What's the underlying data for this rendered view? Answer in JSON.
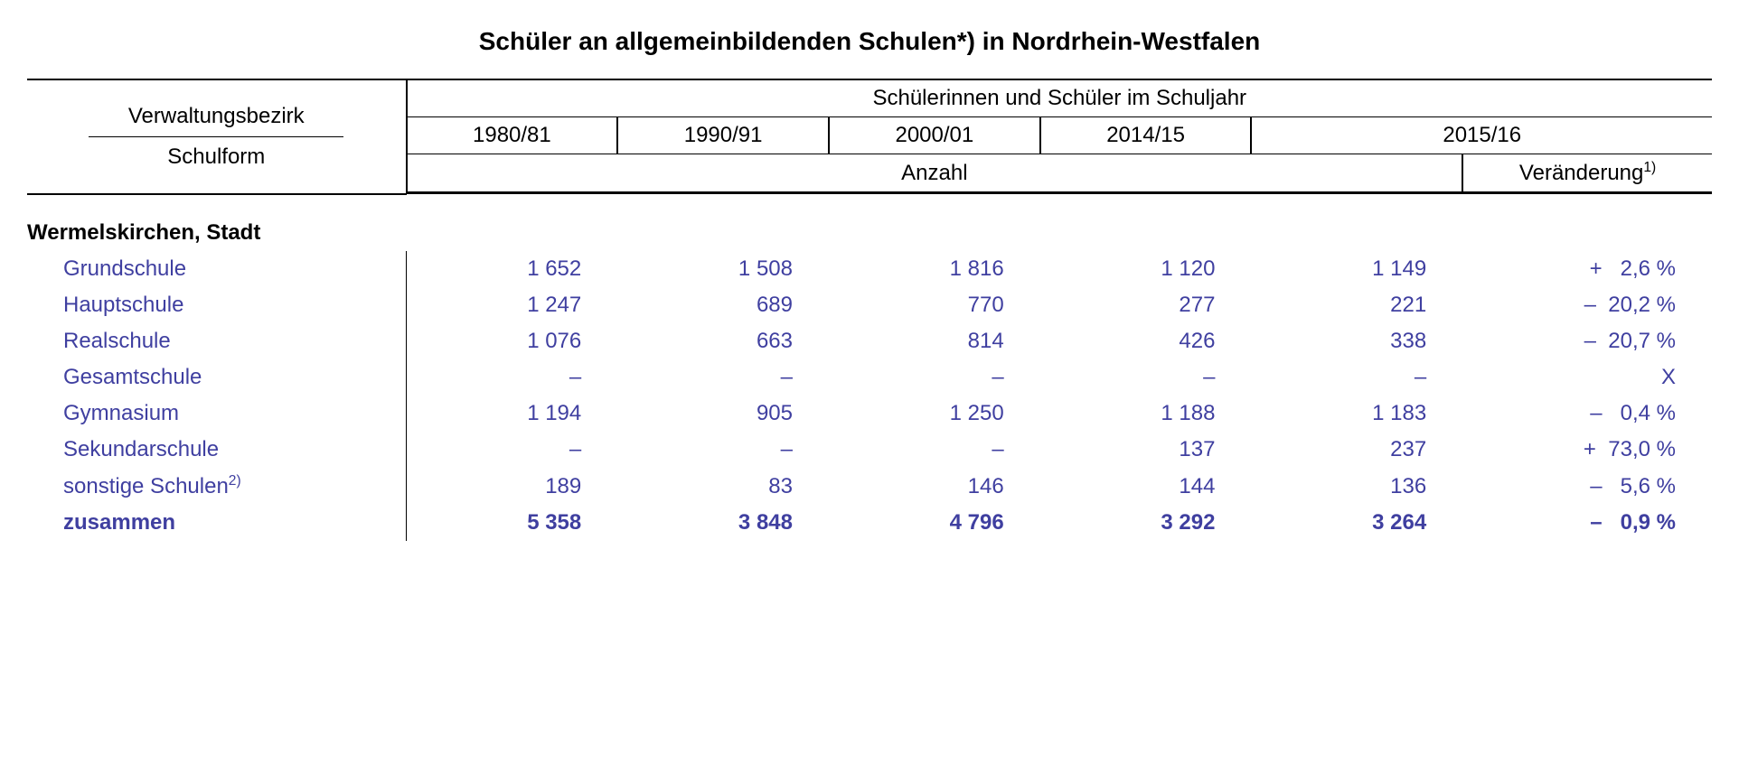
{
  "title": "Schüler an allgemeinbildenden Schulen*) in Nordrhein-Westfalen",
  "stub_top": "Verwaltungsbezirk",
  "stub_bottom": "Schulform",
  "spanner": "Schülerinnen und Schüler im Schuljahr",
  "years": [
    "1980/81",
    "1990/91",
    "2000/01",
    "2014/15",
    "2015/16"
  ],
  "sub_anzahl": "Anzahl",
  "sub_change": "Veränderung",
  "sub_change_sup": "1)",
  "region": "Wermelskirchen, Stadt",
  "rows": [
    {
      "label": "Grundschule",
      "vals": [
        "1 652",
        "1 508",
        "1 816",
        "1 120",
        "1 149"
      ],
      "chg": "+   2,6 %"
    },
    {
      "label": "Hauptschule",
      "vals": [
        "1 247",
        "689",
        "770",
        "277",
        "221"
      ],
      "chg": "–  20,2 %"
    },
    {
      "label": "Realschule",
      "vals": [
        "1 076",
        "663",
        "814",
        "426",
        "338"
      ],
      "chg": "–  20,7 %"
    },
    {
      "label": "Gesamtschule",
      "vals": [
        "–",
        "–",
        "–",
        "–",
        "–"
      ],
      "chg": "X"
    },
    {
      "label": "Gymnasium",
      "vals": [
        "1 194",
        "905",
        "1 250",
        "1 188",
        "1 183"
      ],
      "chg": "–   0,4 %"
    },
    {
      "label": "Sekundarschule",
      "vals": [
        "–",
        "–",
        "–",
        "137",
        "237"
      ],
      "chg": "+  73,0 %"
    },
    {
      "label": "sonstige Schulen",
      "sup": "2)",
      "vals": [
        "189",
        "83",
        "146",
        "144",
        "136"
      ],
      "chg": "–   5,6 %"
    }
  ],
  "total": {
    "label": "zusammen",
    "vals": [
      "5 358",
      "3 848",
      "4 796",
      "3 292",
      "3 264"
    ],
    "chg": "–   0,9 %"
  },
  "colors": {
    "data_text": "#3f3fa0",
    "border": "#000000",
    "background": "#ffffff"
  },
  "fontsizes": {
    "title": 28,
    "body": 24
  }
}
